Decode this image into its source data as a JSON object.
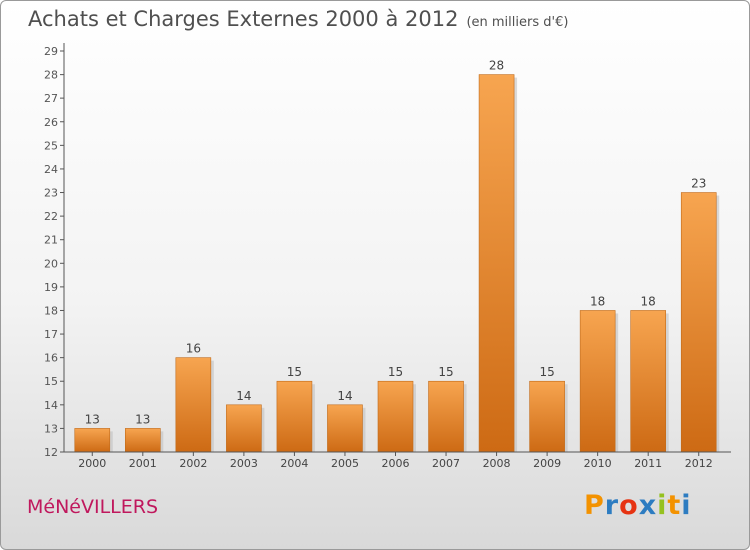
{
  "title": "Achats et Charges Externes 2000 à 2012",
  "unit": "(en milliers d'€)",
  "commune": "MéNéVILLERS",
  "logo": {
    "letters": [
      {
        "ch": "P",
        "color": "#f39200"
      },
      {
        "ch": "r",
        "color": "#2d7cc1"
      },
      {
        "ch": "o",
        "color": "#e63312"
      },
      {
        "ch": "x",
        "color": "#2d7cc1"
      },
      {
        "ch": "i",
        "color": "#95c11f"
      },
      {
        "ch": "t",
        "color": "#f39200"
      },
      {
        "ch": "i",
        "color": "#2d7cc1"
      }
    ]
  },
  "colors": {
    "bar_top": "#f7a550",
    "bar_bottom": "#cd6a14",
    "axis": "#555555",
    "grid": "#cfcfcf"
  },
  "chart_data": {
    "type": "bar",
    "categories": [
      "2000",
      "2001",
      "2002",
      "2003",
      "2004",
      "2005",
      "2006",
      "2007",
      "2008",
      "2009",
      "2010",
      "2011",
      "2012"
    ],
    "values": [
      13,
      13,
      16,
      14,
      15,
      14,
      15,
      15,
      28,
      15,
      18,
      18,
      23
    ],
    "ylim": [
      12,
      29
    ],
    "yticks": [
      12,
      13,
      14,
      15,
      16,
      17,
      18,
      19,
      20,
      21,
      22,
      23,
      24,
      25,
      26,
      27,
      28,
      29
    ],
    "title": "Achats et Charges Externes 2000 à 2012",
    "xlabel": "",
    "ylabel": "",
    "grid": false
  }
}
